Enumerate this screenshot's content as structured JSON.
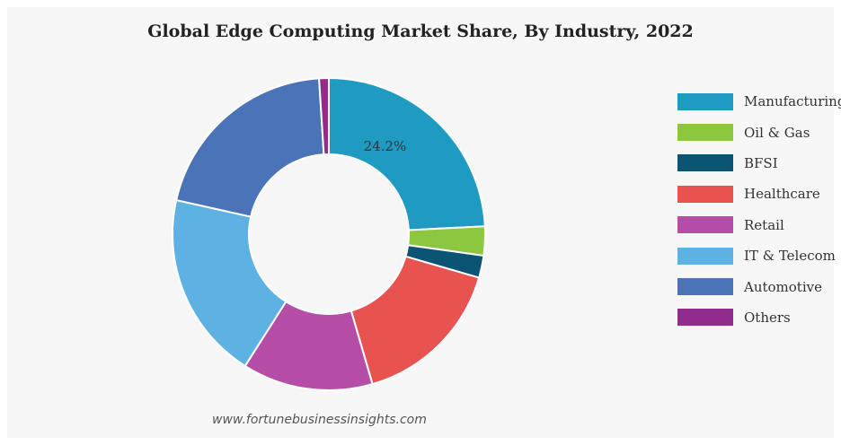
{
  "chart_data": {
    "type": "pie",
    "title": "Global Edge Computing Market Share, By Industry, 2022",
    "categories": [
      "Manufacturing",
      "Oil & Gas",
      "BFSI",
      "Healthcare",
      "Retail",
      "IT & Telecom",
      "Automotive",
      "Others"
    ],
    "values": [
      24.2,
      3.0,
      2.3,
      16.0,
      13.5,
      19.5,
      20.5,
      1.0
    ],
    "value_unit": "%",
    "colors": [
      "#1f9bc2",
      "#8dc63f",
      "#0b5473",
      "#e8524f",
      "#b64ea8",
      "#5db1e3",
      "#4a73b8",
      "#932c8f"
    ],
    "data_labels": [
      {
        "category": "Manufacturing",
        "text": "24.2%"
      }
    ],
    "donut": true,
    "legend_position": "right",
    "grid": false
  },
  "watermark": "www.fortunebusinessinsights.com"
}
